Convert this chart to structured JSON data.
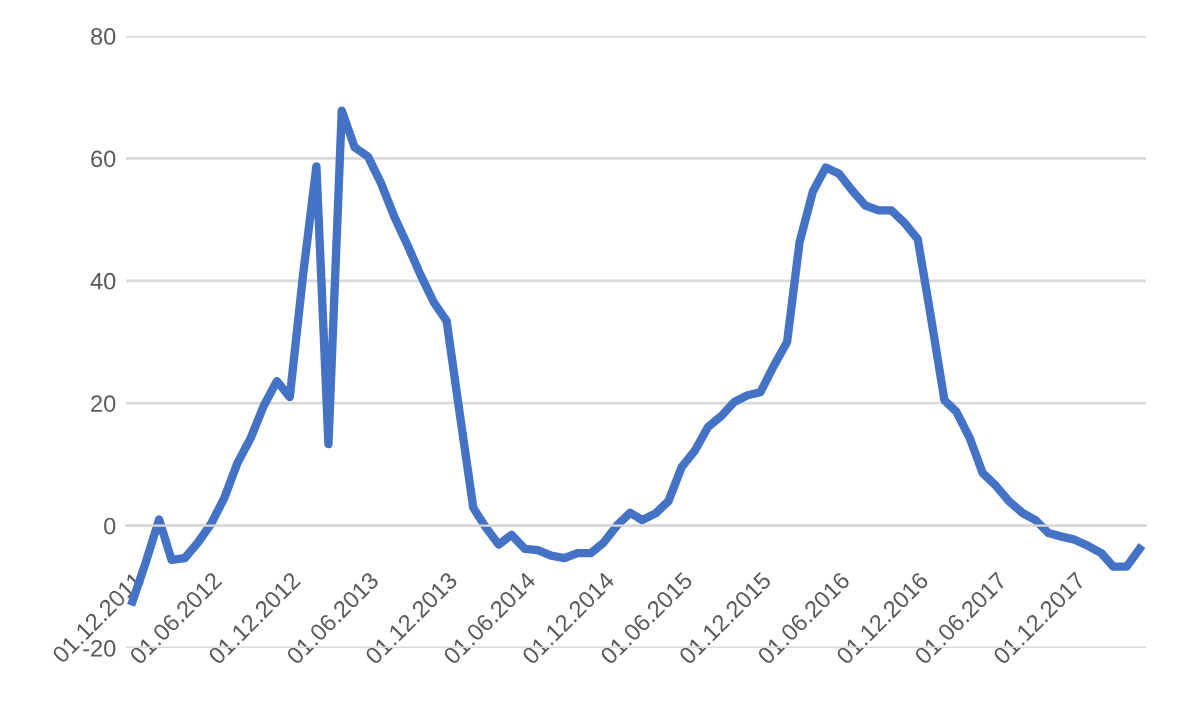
{
  "chart_data": {
    "type": "line",
    "x": [
      "2011-12",
      "2012-01",
      "2012-02",
      "2012-03",
      "2012-04",
      "2012-05",
      "2012-06",
      "2012-07",
      "2012-08",
      "2012-09",
      "2012-10",
      "2012-11",
      "2012-12",
      "2013-01",
      "2013-02",
      "2013-03",
      "2013-04",
      "2013-05",
      "2013-06",
      "2013-07",
      "2013-08",
      "2013-09",
      "2013-10",
      "2013-11",
      "2013-12",
      "2014-01",
      "2014-02",
      "2014-03",
      "2014-04",
      "2014-05",
      "2014-06",
      "2014-07",
      "2014-08",
      "2014-09",
      "2014-10",
      "2014-11",
      "2014-12",
      "2015-01",
      "2015-02",
      "2015-03",
      "2015-04",
      "2015-05",
      "2015-06",
      "2015-07",
      "2015-08",
      "2015-09",
      "2015-10",
      "2015-11",
      "2015-12",
      "2016-01",
      "2016-02",
      "2016-03",
      "2016-04",
      "2016-05",
      "2016-06",
      "2016-07",
      "2016-08",
      "2016-09",
      "2016-10",
      "2016-11",
      "2016-12",
      "2017-01",
      "2017-02",
      "2017-03",
      "2017-04",
      "2017-05",
      "2017-06",
      "2017-07",
      "2017-08",
      "2017-09",
      "2017-10",
      "2017-11",
      "2017-12",
      "2018-01",
      "2018-02",
      "2018-03",
      "2018-04",
      "2018-05"
    ],
    "series": [
      {
        "color": "#4472c4",
        "values": [
          -12.4,
          -6,
          1,
          -5.6,
          -5.3,
          -2.8,
          0.3,
          4.4,
          10.2,
          14.3,
          19.5,
          23.6,
          21,
          41,
          58.7,
          13.3,
          67.8,
          61.8,
          60.3,
          56,
          50.5,
          45.8,
          41,
          36.5,
          33.4,
          18,
          2.9,
          -0.2,
          -3.1,
          -1.5,
          -3.8,
          -4,
          -4.9,
          -5.3,
          -4.5,
          -4.5,
          -2.8,
          0,
          2.1,
          0.9,
          2,
          4,
          9.6,
          12.2,
          16.1,
          17.9,
          20.2,
          21.3,
          21.8,
          26.1,
          30,
          46.3,
          54.6,
          58.5,
          57.5,
          54.8,
          52.3,
          51.5,
          51.5,
          49.4,
          46.8,
          33.9,
          20.5,
          18.6,
          14.3,
          8.6,
          6.5,
          4,
          2.1,
          0.9,
          -1.2,
          -1.8,
          -2.3,
          -3.3,
          -4.5,
          -6.7,
          -6.7,
          -3.8
        ]
      }
    ],
    "xlim": [
      "2011-11-16",
      "2018-05-16"
    ],
    "xticks": [
      {
        "value": "2011-12-01",
        "label": "01.12.2011"
      },
      {
        "value": "2012-06-01",
        "label": "01.06.2012"
      },
      {
        "value": "2012-12-01",
        "label": "01.12.2012"
      },
      {
        "value": "2013-06-01",
        "label": "01.06.2013"
      },
      {
        "value": "2013-12-01",
        "label": "01.12.2013"
      },
      {
        "value": "2014-06-01",
        "label": "01.06.2014"
      },
      {
        "value": "2014-12-01",
        "label": "01.12.2014"
      },
      {
        "value": "2015-06-01",
        "label": "01.06.2015"
      },
      {
        "value": "2015-12-01",
        "label": "01.12.2015"
      },
      {
        "value": "2016-06-01",
        "label": "01.06.2016"
      },
      {
        "value": "2016-12-01",
        "label": "01.12.2016"
      },
      {
        "value": "2017-06-01",
        "label": "01.06.2017"
      },
      {
        "value": "2017-12-01",
        "label": "01.12.2017"
      }
    ],
    "ylim": [
      -20,
      80
    ],
    "yticks": [
      -20,
      0,
      20,
      40,
      60,
      80
    ],
    "grid": "y",
    "marker": "none",
    "line_style": "solid"
  }
}
